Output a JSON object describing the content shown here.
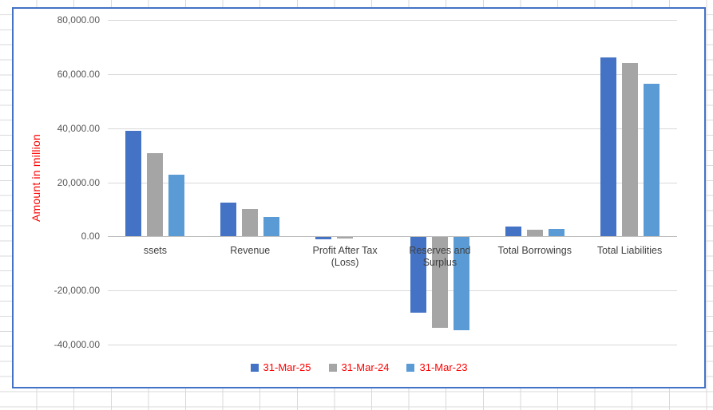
{
  "chart": {
    "border_color": "#4472c4",
    "gridline_color": "#d9d9d9",
    "zero_line_color": "#bfbfbf",
    "tick_label_color": "#595959",
    "category_label_color": "#404040",
    "accent_red": "#ff0000"
  },
  "chart_data": {
    "type": "bar",
    "title": "",
    "categories": [
      "ssets",
      "Revenue",
      "Profit After Tax (Loss)",
      "Reserves and Surplus",
      "Total Borrowings",
      "Total Liabilities"
    ],
    "series": [
      {
        "name": "31-Mar-25",
        "color": "#4472c4",
        "values": [
          38900,
          12600,
          -900,
          -28000,
          3600,
          66100
        ]
      },
      {
        "name": "31-Mar-24",
        "color": "#a5a5a5",
        "values": [
          30700,
          10000,
          -600,
          -33600,
          2600,
          64000
        ]
      },
      {
        "name": "31-Mar-23",
        "color": "#5b9bd5",
        "values": [
          22900,
          7300,
          -100,
          -34400,
          2800,
          56500
        ]
      }
    ],
    "xlabel": "",
    "ylabel": "Amount in million",
    "ylabel_color": "#ff0000",
    "ylim": [
      -40000,
      80000
    ],
    "y_tick_step": 20000,
    "y_tick_format": "#,##0.00",
    "grid": true,
    "legend_position": "bottom",
    "legend_text_color": "#ff0000"
  }
}
